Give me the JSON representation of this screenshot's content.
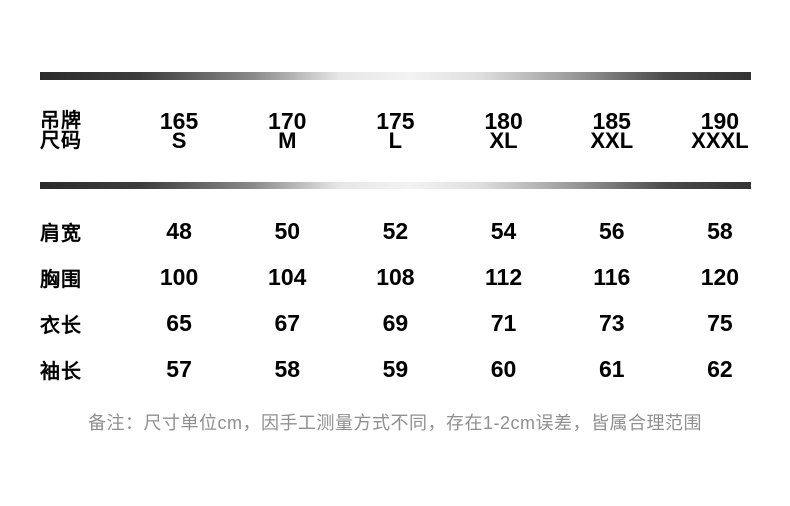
{
  "table": {
    "header": {
      "label_lines": [
        "吊牌",
        "尺码"
      ],
      "columns": [
        {
          "height": "165",
          "size": "S"
        },
        {
          "height": "170",
          "size": "M"
        },
        {
          "height": "175",
          "size": "L"
        },
        {
          "height": "180",
          "size": "XL"
        },
        {
          "height": "185",
          "size": "XXL"
        },
        {
          "height": "190",
          "size": "XXXL"
        }
      ]
    },
    "rows": [
      {
        "label": "肩宽",
        "values": [
          "48",
          "50",
          "52",
          "54",
          "56",
          "58"
        ]
      },
      {
        "label": "胸围",
        "values": [
          "100",
          "104",
          "108",
          "112",
          "116",
          "120"
        ]
      },
      {
        "label": "衣长",
        "values": [
          "65",
          "67",
          "69",
          "71",
          "73",
          "75"
        ]
      },
      {
        "label": "袖长",
        "values": [
          "57",
          "58",
          "59",
          "60",
          "61",
          "62"
        ]
      }
    ]
  },
  "note": "备注：尺寸单位cm，因手工测量方式不同，存在1-2cm误差，皆属合理范围",
  "colors": {
    "text": "#000000",
    "note_text": "#8f8f8f",
    "bar_dark": "#2b2b2b",
    "bar_light": "#f3f3f3",
    "background": "#ffffff"
  }
}
